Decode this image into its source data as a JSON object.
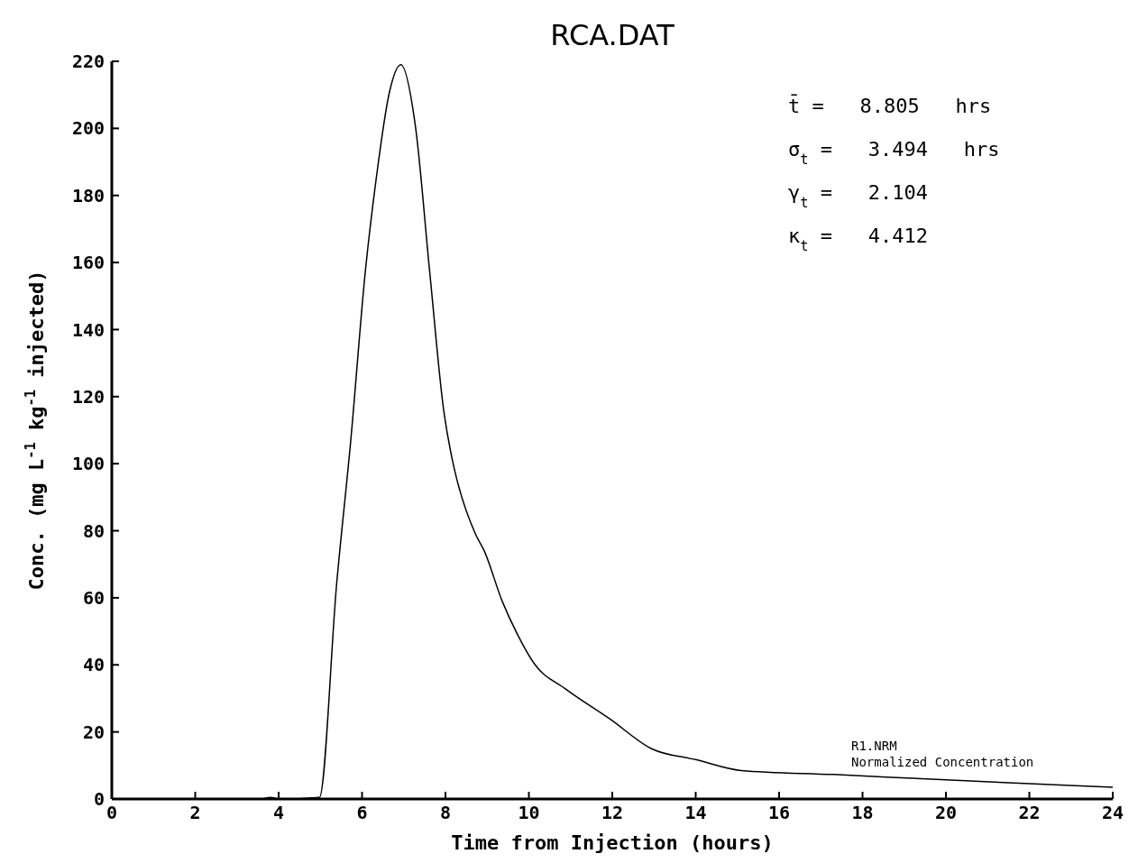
{
  "chart_data": {
    "type": "line",
    "title": "RCA.DAT",
    "xlabel": "Time from Injection (hours)",
    "ylabel": "Conc. (mg L$^{-1}$ kg$^{-1}$ injected)",
    "x": [
      0,
      3.6,
      3.8,
      4.0,
      4.98,
      5.39,
      5.73,
      6.08,
      6.35,
      6.66,
      6.93,
      7.28,
      7.62,
      7.96,
      8.14,
      8.24,
      8.72,
      8.93,
      9.36,
      9.73,
      10.15,
      10.86,
      11.94,
      12.94,
      14.02,
      15.09,
      17.3,
      20,
      22,
      24
    ],
    "series": [
      {
        "color": "#000000",
        "values": [
          0,
          0,
          0.5,
          0,
          0.5,
          64,
          107,
          157.5,
          186,
          211,
          219,
          200.6,
          157.5,
          115.7,
          102.6,
          97,
          79,
          74,
          59,
          49,
          40,
          33,
          23.9,
          15,
          11.7,
          8.5,
          7.3,
          5.7,
          4.6,
          3.5
        ]
      }
    ],
    "xlim": [
      0,
      24
    ],
    "xticks": [
      0,
      2,
      4,
      6,
      8,
      10,
      12,
      14,
      16,
      18,
      20,
      22,
      24
    ],
    "ylim": [
      0,
      220
    ],
    "yticks": [
      0,
      20,
      40,
      60,
      80,
      100,
      120,
      140,
      160,
      180,
      200,
      220
    ],
    "grid": false,
    "legend": false,
    "marker": "none",
    "line_style": "solid",
    "annotations": [
      "t̄ =   8.805   hrs",
      "σ$_{t}$ =   3.494   hrs",
      "γ$_{t}$ =   2.104",
      "κ$_{t}$ =   4.412",
      "R1.NRM",
      "Normalized Concentration"
    ]
  }
}
